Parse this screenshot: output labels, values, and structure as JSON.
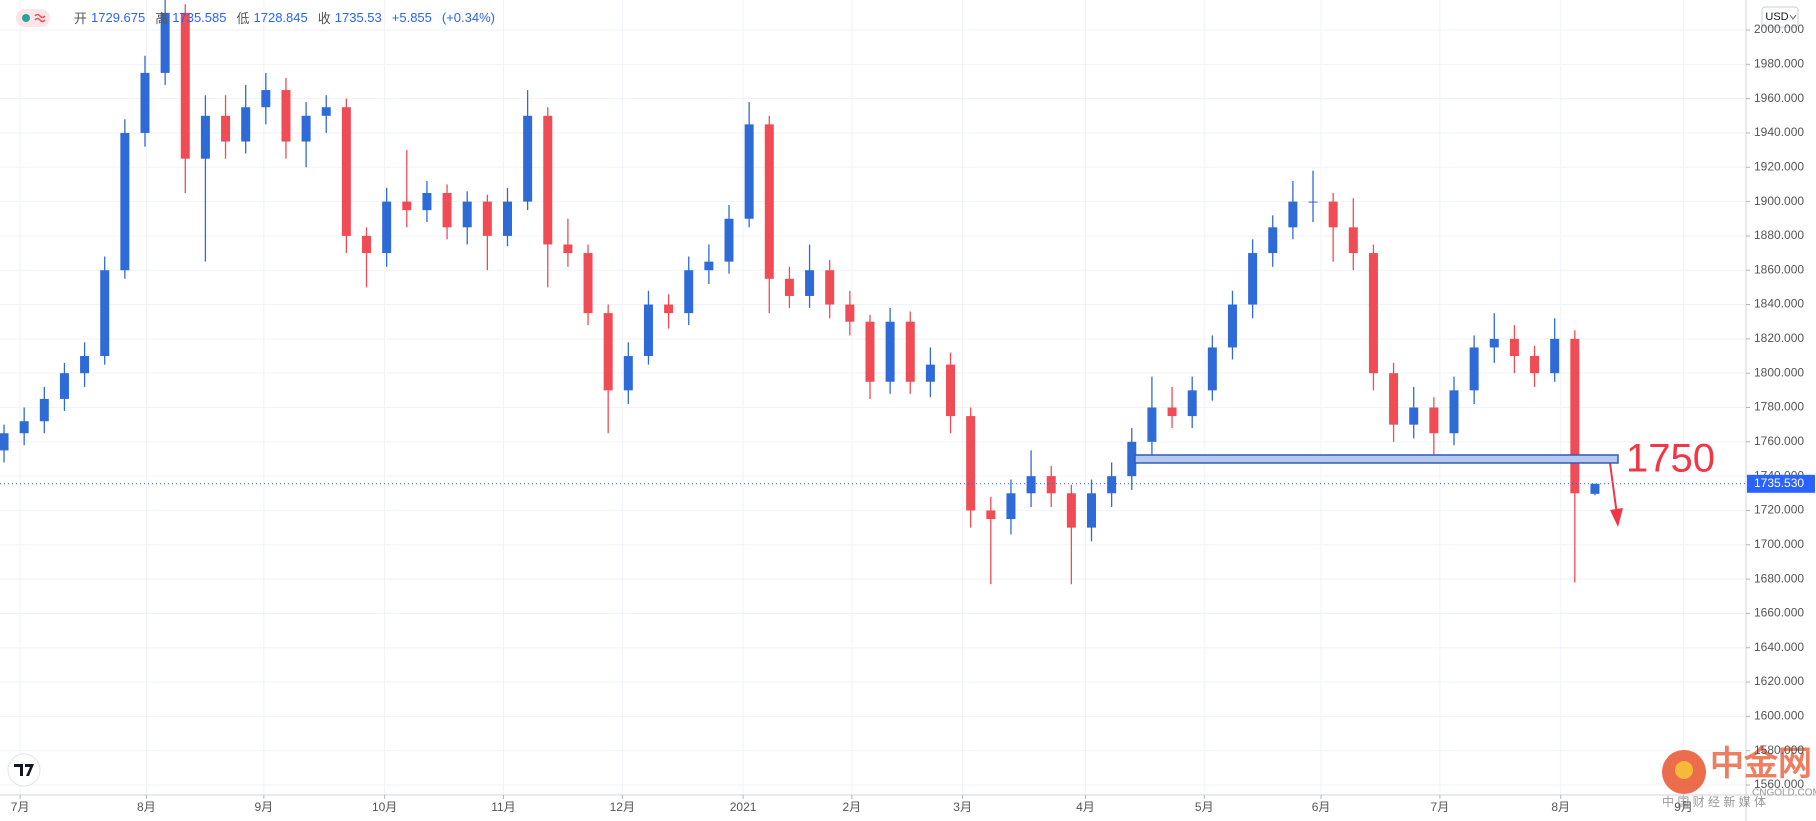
{
  "chart_data": {
    "type": "candlestick",
    "currency": "USD",
    "ohlc_labels": [
      "开",
      "高",
      "低",
      "收"
    ],
    "change": "+5.855",
    "change_pct": "(+0.34%)",
    "up_color": "#2f6bd6",
    "down_color": "#ef4c55",
    "candles": [
      [
        1755,
        1770,
        1748,
        1765
      ],
      [
        1765,
        1780,
        1758,
        1772
      ],
      [
        1772,
        1792,
        1765,
        1785
      ],
      [
        1785,
        1806,
        1778,
        1800
      ],
      [
        1800,
        1818,
        1792,
        1810
      ],
      [
        1810,
        1868,
        1805,
        1860
      ],
      [
        1860,
        1948,
        1855,
        1940
      ],
      [
        1940,
        1985,
        1932,
        1975
      ],
      [
        1975,
        2020,
        1968,
        2010
      ],
      [
        2010,
        2015,
        1905,
        1925
      ],
      [
        1925,
        1962,
        1865,
        1950
      ],
      [
        1950,
        1962,
        1925,
        1935
      ],
      [
        1935,
        1968,
        1928,
        1955
      ],
      [
        1955,
        1975,
        1945,
        1965
      ],
      [
        1965,
        1972,
        1925,
        1935
      ],
      [
        1935,
        1958,
        1920,
        1950
      ],
      [
        1950,
        1962,
        1940,
        1955
      ],
      [
        1955,
        1960,
        1870,
        1880
      ],
      [
        1880,
        1885,
        1850,
        1870
      ],
      [
        1870,
        1908,
        1862,
        1900
      ],
      [
        1900,
        1930,
        1885,
        1895
      ],
      [
        1895,
        1912,
        1888,
        1905
      ],
      [
        1905,
        1910,
        1878,
        1885
      ],
      [
        1885,
        1906,
        1875,
        1900
      ],
      [
        1900,
        1904,
        1860,
        1880
      ],
      [
        1880,
        1908,
        1874,
        1900
      ],
      [
        1900,
        1965,
        1895,
        1950
      ],
      [
        1950,
        1955,
        1850,
        1875
      ],
      [
        1875,
        1890,
        1862,
        1870
      ],
      [
        1870,
        1875,
        1828,
        1835
      ],
      [
        1835,
        1840,
        1765,
        1790
      ],
      [
        1790,
        1818,
        1782,
        1810
      ],
      [
        1810,
        1848,
        1805,
        1840
      ],
      [
        1840,
        1846,
        1826,
        1835
      ],
      [
        1835,
        1868,
        1828,
        1860
      ],
      [
        1860,
        1875,
        1852,
        1865
      ],
      [
        1865,
        1898,
        1858,
        1890
      ],
      [
        1890,
        1958,
        1885,
        1945
      ],
      [
        1945,
        1950,
        1835,
        1855
      ],
      [
        1855,
        1862,
        1838,
        1845
      ],
      [
        1845,
        1875,
        1838,
        1860
      ],
      [
        1860,
        1866,
        1832,
        1840
      ],
      [
        1840,
        1848,
        1822,
        1830
      ],
      [
        1830,
        1834,
        1785,
        1795
      ],
      [
        1795,
        1838,
        1788,
        1830
      ],
      [
        1830,
        1836,
        1788,
        1795
      ],
      [
        1795,
        1815,
        1786,
        1805
      ],
      [
        1805,
        1812,
        1765,
        1775
      ],
      [
        1775,
        1780,
        1710,
        1720
      ],
      [
        1720,
        1728,
        1677,
        1715
      ],
      [
        1715,
        1738,
        1706,
        1730
      ],
      [
        1730,
        1755,
        1722,
        1740
      ],
      [
        1740,
        1746,
        1722,
        1730
      ],
      [
        1730,
        1735,
        1677,
        1710
      ],
      [
        1710,
        1738,
        1702,
        1730
      ],
      [
        1730,
        1748,
        1722,
        1740
      ],
      [
        1740,
        1768,
        1732,
        1760
      ],
      [
        1760,
        1798,
        1752,
        1780
      ],
      [
        1780,
        1792,
        1768,
        1775
      ],
      [
        1775,
        1798,
        1768,
        1790
      ],
      [
        1790,
        1822,
        1784,
        1815
      ],
      [
        1815,
        1848,
        1808,
        1840
      ],
      [
        1840,
        1878,
        1832,
        1870
      ],
      [
        1870,
        1892,
        1862,
        1885
      ],
      [
        1885,
        1912,
        1878,
        1900
      ],
      [
        1900,
        1918,
        1888,
        1900
      ],
      [
        1900,
        1905,
        1865,
        1885
      ],
      [
        1885,
        1902,
        1860,
        1870
      ],
      [
        1870,
        1875,
        1790,
        1800
      ],
      [
        1800,
        1806,
        1760,
        1770
      ],
      [
        1770,
        1792,
        1762,
        1780
      ],
      [
        1780,
        1786,
        1750,
        1765
      ],
      [
        1765,
        1798,
        1758,
        1790
      ],
      [
        1790,
        1822,
        1782,
        1815
      ],
      [
        1815,
        1835,
        1806,
        1820
      ],
      [
        1820,
        1828,
        1800,
        1810
      ],
      [
        1810,
        1816,
        1792,
        1800
      ],
      [
        1800,
        1832,
        1795,
        1820
      ],
      [
        1820,
        1825,
        1678,
        1730
      ],
      [
        1729.675,
        1735.585,
        1728.845,
        1735.53
      ]
    ],
    "last_price": {
      "value": 1735.53,
      "label": "1735.530"
    },
    "level": 1750,
    "xlim": [
      -0.2,
      86.5
    ],
    "xticks": [
      {
        "value": 0.8,
        "label": "7月"
      },
      {
        "value": 7.07,
        "label": "8月"
      },
      {
        "value": 12.9,
        "label": "9月"
      },
      {
        "value": 18.9,
        "label": "10月"
      },
      {
        "value": 24.8,
        "label": "11月"
      },
      {
        "value": 30.7,
        "label": "12月"
      },
      {
        "value": 36.7,
        "label": "2021"
      },
      {
        "value": 42.1,
        "label": "2月"
      },
      {
        "value": 47.6,
        "label": "3月"
      },
      {
        "value": 53.7,
        "label": "4月"
      },
      {
        "value": 59.6,
        "label": "5月"
      },
      {
        "value": 65.4,
        "label": "6月"
      },
      {
        "value": 71.3,
        "label": "7月"
      },
      {
        "value": 77.3,
        "label": "8月"
      },
      {
        "value": 83.4,
        "label": "9月"
      }
    ],
    "ylim": [
      1560,
      2000
    ],
    "yticks": [
      {
        "value": 1560,
        "label": "1560.000"
      },
      {
        "value": 1580,
        "label": "1580.000"
      },
      {
        "value": 1600,
        "label": "1600.000"
      },
      {
        "value": 1620,
        "label": "1620.000"
      },
      {
        "value": 1640,
        "label": "1640.000"
      },
      {
        "value": 1660,
        "label": "1660.000"
      },
      {
        "value": 1680,
        "label": "1680.000"
      },
      {
        "value": 1700,
        "label": "1700.000"
      },
      {
        "value": 1720,
        "label": "1720.000"
      },
      {
        "value": 1740,
        "label": "1740.000"
      },
      {
        "value": 1760,
        "label": "1760.000"
      },
      {
        "value": 1780,
        "label": "1780.000"
      },
      {
        "value": 1800,
        "label": "1800.000"
      },
      {
        "value": 1820,
        "label": "1820.000"
      },
      {
        "value": 1840,
        "label": "1840.000"
      },
      {
        "value": 1860,
        "label": "1860.000"
      },
      {
        "value": 1880,
        "label": "1880.000"
      },
      {
        "value": 1900,
        "label": "1900.000"
      },
      {
        "value": 1920,
        "label": "1920.000"
      },
      {
        "value": 1940,
        "label": "1940.000"
      },
      {
        "value": 1960,
        "label": "1960.000"
      },
      {
        "value": 1980,
        "label": "1980.000"
      },
      {
        "value": 2000,
        "label": "2000.000"
      }
    ],
    "grid": true,
    "watermark": {
      "brand": "中金网",
      "site": "CNGOLD.COM",
      "slogan": "中 国 财 经 新 媒 体"
    }
  }
}
